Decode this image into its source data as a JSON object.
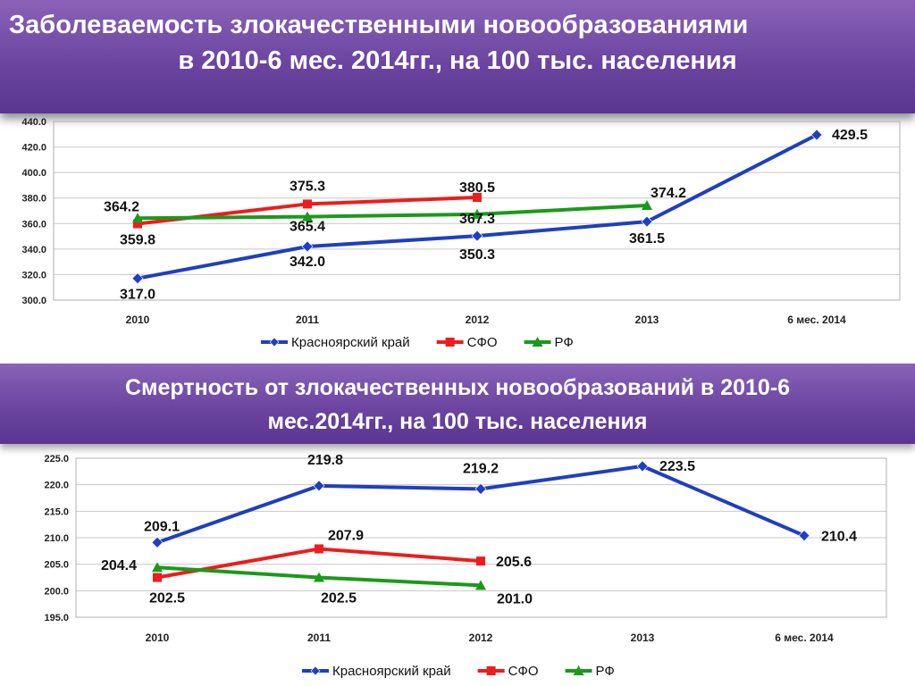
{
  "slide": {
    "title1_line1": "Заболеваемость злокачественными новообразованиями",
    "title1_line2": "в  2010-6 мес. 2014гг., на 100 тыс. населения",
    "title2_line1": "Смертность от  злокачественных новообразований в  2010-6",
    "title2_line2": "мес.2014гг., на 100 тыс. населения"
  },
  "chart_data": [
    {
      "type": "line",
      "categories": [
        "2010",
        "2011",
        "2012",
        "2013",
        "6 мес. 2014"
      ],
      "ylim": [
        300,
        440
      ],
      "yticks": [
        "300.0",
        "320.0",
        "340.0",
        "360.0",
        "380.0",
        "400.0",
        "420.0",
        "440.0"
      ],
      "grid": true,
      "legend": "bottom",
      "series": [
        {
          "name": "Красноярский край",
          "color": "#1f3fbf",
          "marker": "diamond",
          "values": [
            317.0,
            342.0,
            350.3,
            361.5,
            429.5
          ],
          "labels": [
            "317.0",
            "342.0",
            "350.3",
            "361.5",
            "429.5"
          ]
        },
        {
          "name": "СФО",
          "color": "#ee1c1c",
          "marker": "square",
          "values": [
            359.8,
            375.3,
            380.5,
            null,
            null
          ],
          "labels": [
            "359.8",
            "375.3",
            "380.5",
            "",
            ""
          ]
        },
        {
          "name": "РФ",
          "color": "#1a9a1a",
          "marker": "triangle",
          "values": [
            364.2,
            365.4,
            367.3,
            374.2,
            null
          ],
          "labels": [
            "364.2",
            "365.4",
            "367.3",
            "374.2",
            ""
          ]
        }
      ]
    },
    {
      "type": "line",
      "categories": [
        "2010",
        "2011",
        "2012",
        "2013",
        "6 мес. 2014"
      ],
      "ylim": [
        195,
        225
      ],
      "yticks": [
        "195.0",
        "200.0",
        "205.0",
        "210.0",
        "215.0",
        "220.0",
        "225.0"
      ],
      "grid": true,
      "legend": "bottom",
      "series": [
        {
          "name": "Красноярский край",
          "color": "#1f3fbf",
          "marker": "diamond",
          "values": [
            209.1,
            219.8,
            219.2,
            223.5,
            210.4
          ],
          "labels": [
            "209.1",
            "219.8",
            "219.2",
            "223.5",
            "210.4"
          ]
        },
        {
          "name": "СФО",
          "color": "#ee1c1c",
          "marker": "square",
          "values": [
            202.5,
            207.9,
            205.6,
            null,
            null
          ],
          "labels": [
            "202.5",
            "207.9",
            "205.6",
            "",
            ""
          ]
        },
        {
          "name": "РФ",
          "color": "#1a9a1a",
          "marker": "triangle",
          "values": [
            204.4,
            202.5,
            201.0,
            null,
            null
          ],
          "labels": [
            "204.4",
            "202.5",
            "201.0",
            "",
            ""
          ]
        }
      ]
    }
  ]
}
